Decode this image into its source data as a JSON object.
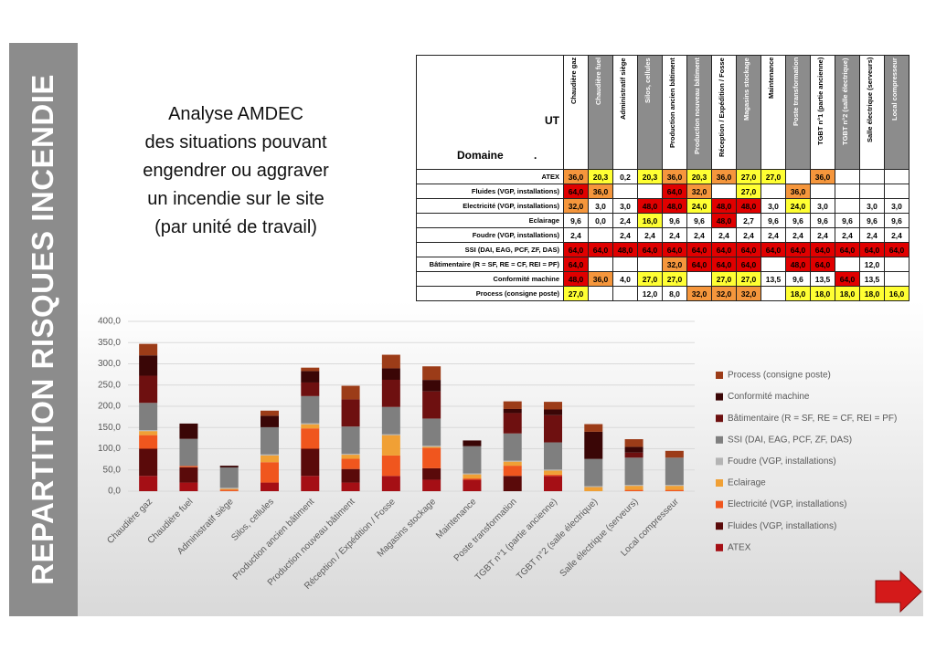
{
  "slide_title": "REPARTITION RISQUES INCENDIE",
  "description": [
    "Analyse AMDEC",
    "des situations pouvant",
    "engendrer ou aggraver",
    "un incendie sur le site",
    "(par unité de travail)"
  ],
  "table": {
    "ut_label": "UT",
    "domain_label": "Domaine          ."
  },
  "chart_data": {
    "type": "bar",
    "stacked": true,
    "categories": [
      "Chaudière gaz",
      "Chaudière fuel",
      "Administratif siège",
      "Silos, cellules",
      "Production ancien bâtiment",
      "Production nouveau bâtiment",
      "Réception / Expédition / Fosse",
      "Magasins stockage",
      "Maintenance",
      "Poste transformation",
      "TGBT n°1 (partie ancienne)",
      "TGBT n°2 (salle électrique)",
      "Salle électrique (serveurs)",
      "Local compresseur"
    ],
    "series": [
      {
        "name": "ATEX",
        "color": "#a50f15",
        "values": [
          36.0,
          20.3,
          0.2,
          20.3,
          36.0,
          20.3,
          36.0,
          27.0,
          27.0,
          null,
          36.0,
          null,
          null,
          null
        ],
        "value_labels": [
          "36,0",
          "20,3",
          "0,2",
          "20,3",
          "36,0",
          "20,3",
          "36,0",
          "27,0",
          "27,0",
          null,
          "36,0",
          null,
          null,
          null
        ],
        "cell_colors": [
          "#f5963c",
          "#ffff33",
          "#fff",
          "#ffff33",
          "#f5963c",
          "#ffff33",
          "#f5963c",
          "#ffff33",
          "#ffff33",
          "#fff",
          "#f5963c",
          "#fff",
          "#fff",
          "#fff"
        ]
      },
      {
        "name": "Fluides (VGP, installations)",
        "color": "#5a0a0a",
        "values": [
          64.0,
          36.0,
          null,
          null,
          64.0,
          32.0,
          null,
          27.0,
          null,
          36.0,
          null,
          null,
          null,
          null
        ],
        "value_labels": [
          "64,0",
          "36,0",
          null,
          null,
          "64,0",
          "32,0",
          null,
          "27,0",
          null,
          "36,0",
          null,
          null,
          null,
          null
        ],
        "cell_colors": [
          "#e00000",
          "#f5963c",
          "#fff",
          "#fff",
          "#e00000",
          "#f5963c",
          "#fff",
          "#ffff33",
          "#fff",
          "#f5963c",
          "#fff",
          "#fff",
          "#fff",
          "#fff"
        ]
      },
      {
        "name": "Electricité (VGP, installations)",
        "color": "#f0561e",
        "values": [
          32.0,
          3.0,
          3.0,
          48.0,
          48.0,
          24.0,
          48.0,
          48.0,
          3.0,
          24.0,
          3.0,
          null,
          3.0,
          3.0
        ],
        "value_labels": [
          "32,0",
          "3,0",
          "3,0",
          "48,0",
          "48,0",
          "24,0",
          "48,0",
          "48,0",
          "3,0",
          "24,0",
          "3,0",
          null,
          "3,0",
          "3,0"
        ],
        "cell_colors": [
          "#f5963c",
          "#fff",
          "#fff",
          "#e00000",
          "#e00000",
          "#ffff33",
          "#e00000",
          "#e00000",
          "#fff",
          "#ffff33",
          "#fff",
          "#fff",
          "#fff",
          "#fff"
        ]
      },
      {
        "name": "Eclairage",
        "color": "#f0a035",
        "values": [
          9.6,
          0.0,
          2.4,
          16.0,
          9.6,
          9.6,
          48.0,
          2.7,
          9.6,
          9.6,
          9.6,
          9.6,
          9.6,
          9.6
        ],
        "value_labels": [
          "9,6",
          "0,0",
          "2,4",
          "16,0",
          "9,6",
          "9,6",
          "48,0",
          "2,7",
          "9,6",
          "9,6",
          "9,6",
          "9,6",
          "9,6",
          "9,6"
        ],
        "cell_colors": [
          "#fff",
          "#fff",
          "#fff",
          "#ffff33",
          "#fff",
          "#fff",
          "#e00000",
          "#fff",
          "#fff",
          "#fff",
          "#fff",
          "#fff",
          "#fff",
          "#fff"
        ]
      },
      {
        "name": "Foudre (VGP, installations)",
        "color": "#b4b4b4",
        "values": [
          2.4,
          null,
          2.4,
          2.4,
          2.4,
          2.4,
          2.4,
          2.4,
          2.4,
          2.4,
          2.4,
          2.4,
          2.4,
          2.4
        ],
        "value_labels": [
          "2,4",
          null,
          "2,4",
          "2,4",
          "2,4",
          "2,4",
          "2,4",
          "2,4",
          "2,4",
          "2,4",
          "2,4",
          "2,4",
          "2,4",
          "2,4"
        ],
        "cell_colors": [
          "#fff",
          "#fff",
          "#fff",
          "#fff",
          "#fff",
          "#fff",
          "#fff",
          "#fff",
          "#fff",
          "#fff",
          "#fff",
          "#fff",
          "#fff",
          "#fff"
        ]
      },
      {
        "name": "SSI (DAI, EAG, PCF, ZF, DAS)",
        "color": "#7f7f7f",
        "values": [
          64.0,
          64.0,
          48.0,
          64.0,
          64.0,
          64.0,
          64.0,
          64.0,
          64.0,
          64.0,
          64.0,
          64.0,
          64.0,
          64.0
        ],
        "value_labels": [
          "64,0",
          "64,0",
          "48,0",
          "64,0",
          "64,0",
          "64,0",
          "64,0",
          "64,0",
          "64,0",
          "64,0",
          "64,0",
          "64,0",
          "64,0",
          "64,0"
        ],
        "cell_colors": [
          "#e00000",
          "#e00000",
          "#e00000",
          "#e00000",
          "#e00000",
          "#e00000",
          "#e00000",
          "#e00000",
          "#e00000",
          "#e00000",
          "#e00000",
          "#e00000",
          "#e00000",
          "#e00000"
        ]
      },
      {
        "name": "Bâtimentaire (R = SF, RE = CF, REI = PF)",
        "color": "#6e1010",
        "values": [
          64.0,
          null,
          null,
          null,
          32.0,
          64.0,
          64.0,
          64.0,
          null,
          48.0,
          64.0,
          null,
          12.0,
          null
        ],
        "value_labels": [
          "64,0",
          null,
          null,
          null,
          "32,0",
          "64,0",
          "64,0",
          "64,0",
          null,
          "48,0",
          "64,0",
          null,
          "12,0",
          null
        ],
        "cell_colors": [
          "#e00000",
          "#fff",
          "#fff",
          "#fff",
          "#f5963c",
          "#e00000",
          "#e00000",
          "#e00000",
          "#fff",
          "#e00000",
          "#e00000",
          "#fff",
          "#fff",
          "#fff"
        ]
      },
      {
        "name": "Conformité machine",
        "color": "#3a0606",
        "values": [
          48.0,
          36.0,
          4.0,
          27.0,
          27.0,
          null,
          27.0,
          27.0,
          13.5,
          9.6,
          13.5,
          64.0,
          13.5,
          null
        ],
        "value_labels": [
          "48,0",
          "36,0",
          "4,0",
          "27,0",
          "27,0",
          null,
          "27,0",
          "27,0",
          "13,5",
          "9,6",
          "13,5",
          "64,0",
          "13,5",
          null
        ],
        "cell_colors": [
          "#e00000",
          "#f5963c",
          "#fff",
          "#ffff33",
          "#ffff33",
          "#fff",
          "#ffff33",
          "#ffff33",
          "#fff",
          "#fff",
          "#fff",
          "#e00000",
          "#fff",
          "#fff"
        ]
      },
      {
        "name": "Process (consigne poste)",
        "color": "#9c3c18",
        "values": [
          27.0,
          null,
          null,
          12.0,
          8.0,
          32.0,
          32.0,
          32.0,
          null,
          18.0,
          18.0,
          18.0,
          18.0,
          16.0
        ],
        "value_labels": [
          "27,0",
          null,
          null,
          "12,0",
          "8,0",
          "32,0",
          "32,0",
          "32,0",
          null,
          "18,0",
          "18,0",
          "18,0",
          "18,0",
          "16,0"
        ],
        "cell_colors": [
          "#ffff33",
          "#fff",
          "#fff",
          "#fff",
          "#fff",
          "#f5963c",
          "#f5963c",
          "#f5963c",
          "#fff",
          "#ffff33",
          "#ffff33",
          "#ffff33",
          "#ffff33",
          "#ffff33"
        ]
      }
    ],
    "ylim": [
      0,
      400
    ],
    "yticks": [
      {
        "value": 0,
        "label": "0,0"
      },
      {
        "value": 50,
        "label": "50,0"
      },
      {
        "value": 100,
        "label": "100,0"
      },
      {
        "value": 150,
        "label": "150,0"
      },
      {
        "value": 200,
        "label": "200,0"
      },
      {
        "value": 250,
        "label": "250,0"
      },
      {
        "value": 300,
        "label": "300,0"
      },
      {
        "value": 350,
        "label": "350,0"
      },
      {
        "value": 400,
        "label": "400,0"
      }
    ],
    "grid": true,
    "legend": "right"
  }
}
